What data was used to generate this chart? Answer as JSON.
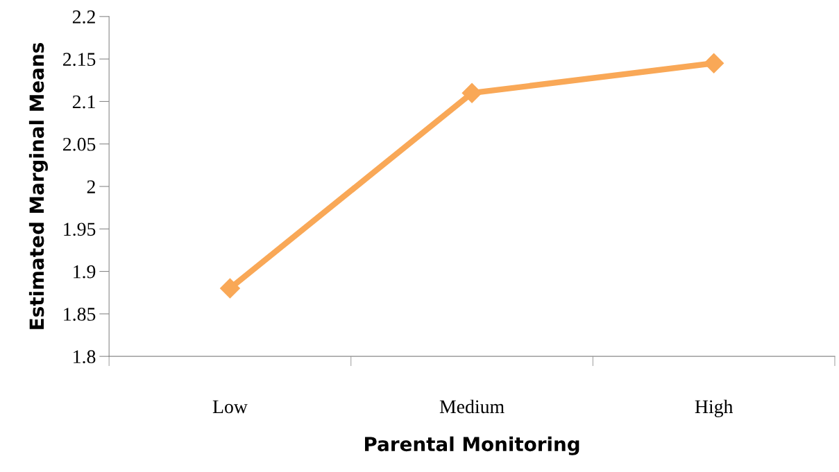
{
  "chart_data": {
    "type": "line",
    "xlabel": "Parental Monitoring",
    "ylabel": "Estimated Marginal Means",
    "categories": [
      "Low",
      "Medium",
      "High"
    ],
    "series": [
      {
        "color": "#f9a857",
        "values": [
          1.88,
          2.11,
          2.145
        ]
      }
    ],
    "ylim": [
      1.8,
      2.2
    ],
    "yticks": [
      {
        "value": 1.8,
        "label": "1.8"
      },
      {
        "value": 1.85,
        "label": "1.85"
      },
      {
        "value": 1.9,
        "label": "1.9"
      },
      {
        "value": 1.95,
        "label": "1.95"
      },
      {
        "value": 2,
        "label": "2"
      },
      {
        "value": 2.05,
        "label": "2.05"
      },
      {
        "value": 2.1,
        "label": "2.1"
      },
      {
        "value": 2.15,
        "label": "2.15"
      },
      {
        "value": 2.2,
        "label": "2.2"
      }
    ],
    "marker": "diamond",
    "line_style": "solid",
    "grid": false
  }
}
